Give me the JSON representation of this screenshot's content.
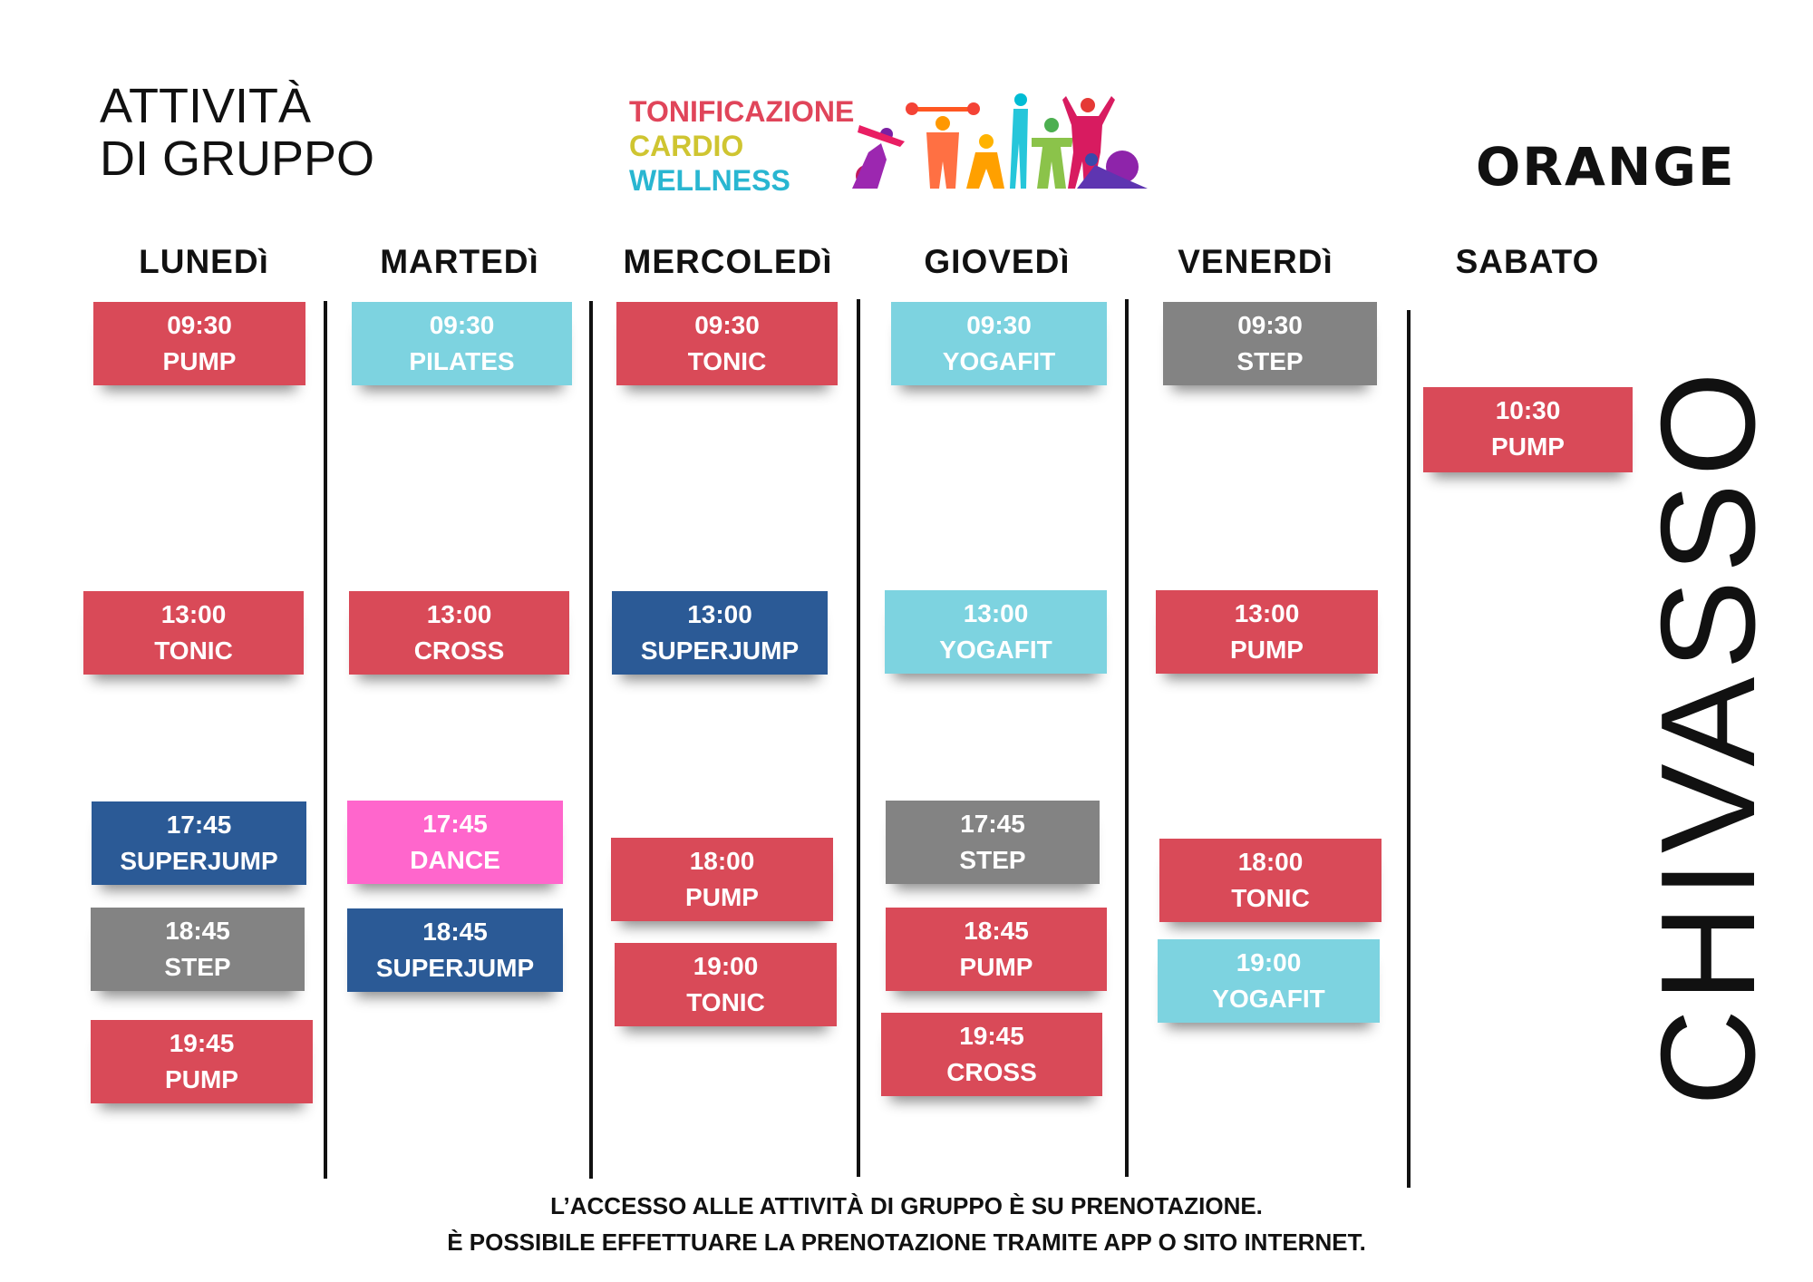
{
  "header": {
    "title_line1": "ATTIVITÀ",
    "title_line2": "DI GRUPPO",
    "categories": [
      {
        "label": "TONIFICAZIONE",
        "color": "#e0455a"
      },
      {
        "label": "CARDIO",
        "color": "#cfc531"
      },
      {
        "label": "WELLNESS",
        "color": "#29b6d1"
      }
    ],
    "logo": "ORANGE",
    "figures_icon": "athletes-silhouettes-icon"
  },
  "days": [
    "LUNEDì",
    "MARTEDì",
    "MERCOLEDì",
    "GIOVEDì",
    "VENERDì",
    "SABATO"
  ],
  "schedule": {
    "lunedi": [
      {
        "time": "09:30",
        "name": "PUMP"
      },
      {
        "time": "13:00",
        "name": "TONIC"
      },
      {
        "time": "17:45",
        "name": "SUPERJUMP"
      },
      {
        "time": "18:45",
        "name": "STEP"
      },
      {
        "time": "19:45",
        "name": "PUMP"
      }
    ],
    "martedi": [
      {
        "time": "09:30",
        "name": "PILATES"
      },
      {
        "time": "13:00",
        "name": "CROSS"
      },
      {
        "time": "17:45",
        "name": "DANCE"
      },
      {
        "time": "18:45",
        "name": "SUPERJUMP"
      }
    ],
    "mercoledi": [
      {
        "time": "09:30",
        "name": "TONIC"
      },
      {
        "time": "13:00",
        "name": "SUPERJUMP"
      },
      {
        "time": "18:00",
        "name": "PUMP"
      },
      {
        "time": "19:00",
        "name": "TONIC"
      }
    ],
    "giovedi": [
      {
        "time": "09:30",
        "name": "YOGAFIT"
      },
      {
        "time": "13:00",
        "name": "YOGAFIT"
      },
      {
        "time": "17:45",
        "name": "STEP"
      },
      {
        "time": "18:45",
        "name": "PUMP"
      },
      {
        "time": "19:45",
        "name": "CROSS"
      }
    ],
    "venerdi": [
      {
        "time": "09:30",
        "name": "STEP"
      },
      {
        "time": "13:00",
        "name": "PUMP"
      },
      {
        "time": "18:00",
        "name": "TONIC"
      },
      {
        "time": "19:00",
        "name": "YOGAFIT"
      }
    ],
    "sabato": [
      {
        "time": "10:30",
        "name": "PUMP"
      }
    ]
  },
  "colors": {
    "red": "#d94a58",
    "cyan": "#7dd3e0",
    "navy": "#2b5a96",
    "gray": "#838383",
    "pink": "#ff66cc"
  },
  "city": "CHIVASSO",
  "footer": {
    "line1": "L’ACCESSO ALLE ATTIVITÀ DI GRUPPO È SU PRENOTAZIONE.",
    "line2": "È POSSIBILE EFFETTUARE LA PRENOTAZIONE TRAMITE APP O SITO INTERNET."
  }
}
